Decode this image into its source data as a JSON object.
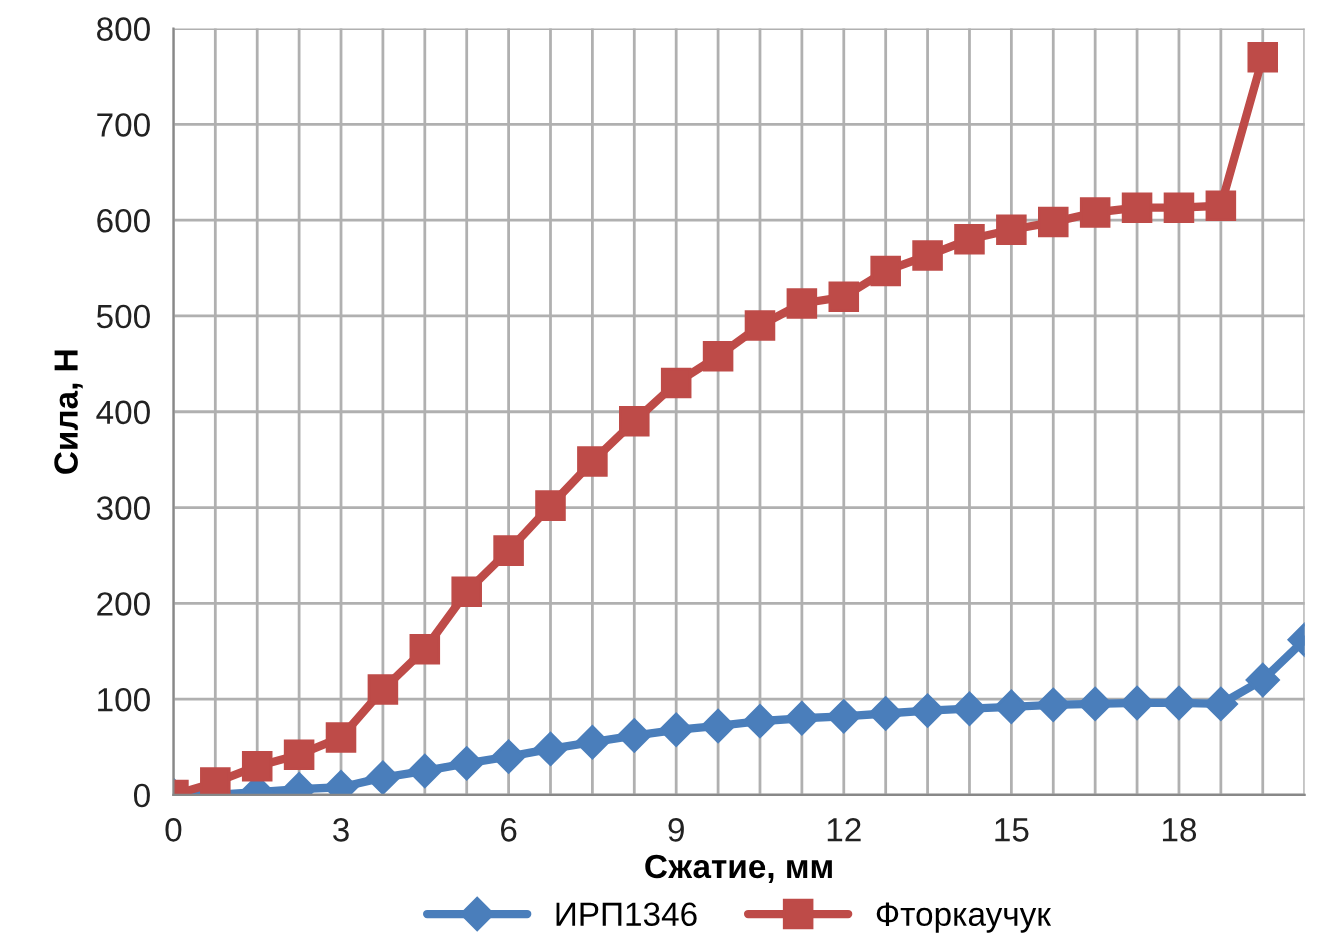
{
  "chart_data": {
    "type": "line",
    "xlabel": "Сжатие, мм",
    "ylabel": "Сила, Н",
    "x": [
      0,
      0.75,
      1.5,
      2.25,
      3,
      3.75,
      4.5,
      5.25,
      6,
      6.75,
      7.5,
      8.25,
      9,
      9.75,
      10.5,
      11.25,
      12,
      12.75,
      13.5,
      14.25,
      15,
      15.75,
      16.5,
      17.25,
      18,
      18.75,
      19.5,
      20.25
    ],
    "series": [
      {
        "name": "ИРП1346",
        "color": "#4a7ebb",
        "marker": "diamond",
        "values": [
          0,
          0,
          3,
          6,
          8,
          18,
          25,
          33,
          40,
          48,
          55,
          62,
          68,
          72,
          77,
          80,
          82,
          85,
          88,
          90,
          92,
          94,
          95,
          96,
          96,
          95,
          120,
          162
        ]
      },
      {
        "name": "Фторкаучук",
        "color": "#be4b48",
        "marker": "square",
        "values": [
          0,
          13,
          30,
          42,
          60,
          110,
          152,
          212,
          255,
          302,
          348,
          390,
          430,
          458,
          490,
          513,
          520,
          547,
          563,
          580,
          590,
          598,
          608,
          613,
          613,
          615,
          770,
          null
        ]
      }
    ],
    "xlim": [
      0,
      20.25
    ],
    "xticks": [
      0,
      {
        "value": 0.75,
        "label": null
      },
      {
        "value": 1.5,
        "label": null
      },
      {
        "value": 2.25,
        "label": null
      },
      3,
      {
        "value": 3.75,
        "label": null
      },
      {
        "value": 4.5,
        "label": null
      },
      {
        "value": 5.25,
        "label": null
      },
      6,
      {
        "value": 6.75,
        "label": null
      },
      {
        "value": 7.5,
        "label": null
      },
      {
        "value": 8.25,
        "label": null
      },
      9,
      {
        "value": 9.75,
        "label": null
      },
      {
        "value": 10.5,
        "label": null
      },
      {
        "value": 11.25,
        "label": null
      },
      12,
      {
        "value": 12.75,
        "label": null
      },
      {
        "value": 13.5,
        "label": null
      },
      {
        "value": 14.25,
        "label": null
      },
      15,
      {
        "value": 15.75,
        "label": null
      },
      {
        "value": 16.5,
        "label": null
      },
      {
        "value": 17.25,
        "label": null
      },
      18,
      {
        "value": 18.75,
        "label": null
      },
      {
        "value": 19.5,
        "label": null
      },
      {
        "value": 20.25,
        "label": null
      }
    ],
    "ylim": [
      0,
      800
    ],
    "yticks": [
      0,
      100,
      200,
      300,
      400,
      500,
      600,
      700,
      800
    ],
    "grid": true,
    "legend": "bottom",
    "line_style": "solid"
  }
}
